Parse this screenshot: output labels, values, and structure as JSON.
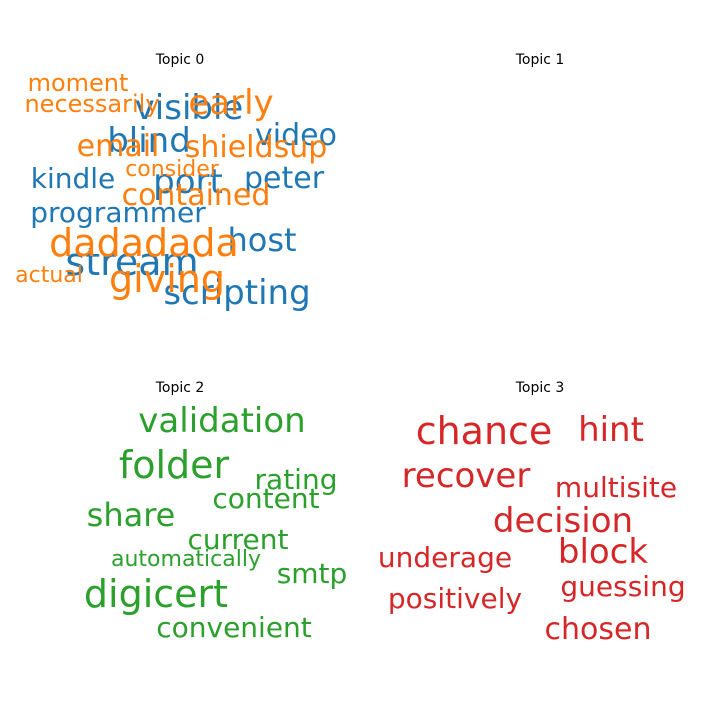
{
  "chart_data": [
    {
      "type": "wordcloud",
      "title": "Topic 0",
      "color": "#1f77b4",
      "words": [
        "visible",
        "blind",
        "video",
        "kindle",
        "port",
        "peter",
        "programmer",
        "host",
        "stream",
        "scripting"
      ]
    },
    {
      "type": "wordcloud",
      "title": "Topic 1",
      "color": "#ff7f0e",
      "words": [
        "moment",
        "necessarily",
        "early",
        "email",
        "shieldsup",
        "consider",
        "contained",
        "dadadada",
        "actual",
        "giving"
      ]
    },
    {
      "type": "wordcloud",
      "title": "Topic 2",
      "color": "#2ca02c",
      "words": [
        "validation",
        "folder",
        "rating",
        "content",
        "share",
        "current",
        "automatically",
        "smtp",
        "digicert",
        "convenient"
      ]
    },
    {
      "type": "wordcloud",
      "title": "Topic 3",
      "color": "#d62728",
      "words": [
        "chance",
        "hint",
        "recover",
        "multisite",
        "decision",
        "block",
        "underage",
        "guessing",
        "positively",
        "chosen"
      ]
    }
  ]
}
